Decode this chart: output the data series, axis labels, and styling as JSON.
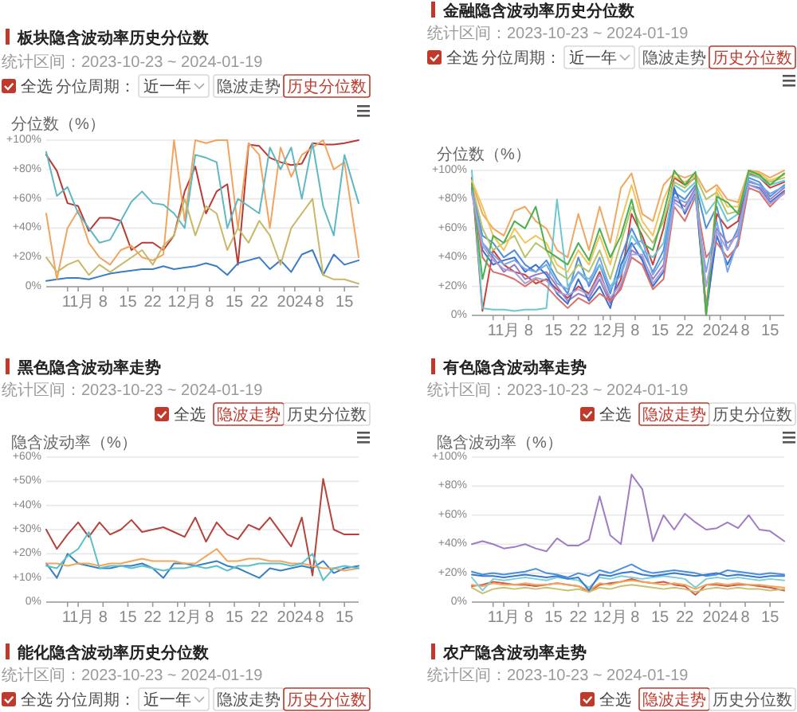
{
  "chart_data": [
    {
      "type": "line",
      "title": "板块隐含波动率历史分位数",
      "subtitle": "统计区间：2023-10-23 ~ 2024-01-19",
      "annotations": [
        "全选",
        "分位周期：",
        "近一年",
        "隐波走势",
        "历史分位数"
      ],
      "ylabel": "分位数（%）",
      "x": [
        "2023-10-23",
        "2023-10-26",
        "2023-10-29",
        "2023-11-01",
        "2023-11-04",
        "2023-11-07",
        "2023-11-10",
        "2023-11-13",
        "2023-11-16",
        "2023-11-19",
        "2023-11-22",
        "2023-11-25",
        "2023-11-28",
        "2023-12-01",
        "2023-12-04",
        "2023-12-07",
        "2023-12-10",
        "2023-12-13",
        "2023-12-16",
        "2023-12-19",
        "2023-12-22",
        "2023-12-25",
        "2023-12-28",
        "2023-12-31",
        "2024-01-03",
        "2024-01-06",
        "2024-01-09",
        "2024-01-12",
        "2024-01-15",
        "2024-01-19"
      ],
      "xlim": [
        "2023-10-23",
        "2024-01-19"
      ],
      "xticks": [
        {
          "value": "2023-10-29",
          "label": null
        },
        {
          "value": "2023-11-01",
          "label": "11月"
        },
        {
          "value": "2023-11-08",
          "label": "8"
        },
        {
          "value": "2023-11-15",
          "label": "15"
        },
        {
          "value": "2023-11-22",
          "label": "22"
        },
        {
          "value": "2023-11-29",
          "label": null
        },
        {
          "value": "2023-12-01",
          "label": "12月"
        },
        {
          "value": "2023-12-08",
          "label": "8"
        },
        {
          "value": "2023-12-15",
          "label": "15"
        },
        {
          "value": "2023-12-22",
          "label": "22"
        },
        {
          "value": "2023-12-29",
          "label": null
        },
        {
          "value": "2024-01-01",
          "label": "2024"
        },
        {
          "value": "2024-01-08",
          "label": "8"
        },
        {
          "value": "2024-01-15",
          "label": "15"
        }
      ],
      "ylim": [
        0,
        100
      ],
      "yticks": [
        {
          "value": 0,
          "label": "0%"
        },
        {
          "value": 20,
          "label": "+20%"
        },
        {
          "value": 40,
          "label": "+40%"
        },
        {
          "value": 60,
          "label": "+60%"
        },
        {
          "value": 80,
          "label": "+80%"
        },
        {
          "value": 100,
          "label": "+100%"
        }
      ],
      "grid": "y",
      "series": [
        {
          "color": "#b83a34",
          "values": [
            90,
            79,
            57,
            55,
            38,
            47,
            47,
            45,
            25,
            30,
            30,
            25,
            35,
            65,
            82,
            50,
            65,
            70,
            15,
            97,
            96,
            88,
            85,
            83,
            84,
            98,
            97,
            97,
            98,
            100
          ]
        },
        {
          "color": "#3a7cc6",
          "values": [
            4,
            5,
            6,
            6,
            5,
            7,
            9,
            10,
            11,
            12,
            12,
            14,
            12,
            13,
            14,
            16,
            14,
            8,
            16,
            18,
            20,
            12,
            18,
            10,
            22,
            25,
            8,
            22,
            15,
            18
          ]
        },
        {
          "color": "#f2a35e",
          "values": [
            50,
            5,
            40,
            52,
            30,
            20,
            15,
            25,
            28,
            20,
            18,
            22,
            100,
            45,
            100,
            98,
            100,
            100,
            40,
            98,
            90,
            40,
            95,
            75,
            90,
            95,
            100,
            80,
            85,
            20
          ]
        },
        {
          "color": "#5fb8c2",
          "values": [
            92,
            62,
            68,
            50,
            40,
            30,
            32,
            45,
            58,
            65,
            57,
            56,
            50,
            40,
            90,
            88,
            85,
            40,
            60,
            55,
            50,
            95,
            80,
            95,
            60,
            98,
            55,
            35,
            90,
            57
          ]
        },
        {
          "color": "#c9b86a",
          "values": [
            20,
            10,
            15,
            18,
            8,
            15,
            10,
            15,
            20,
            25,
            15,
            28,
            35,
            60,
            35,
            55,
            50,
            25,
            40,
            30,
            45,
            35,
            15,
            40,
            50,
            60,
            8,
            5,
            5,
            2
          ]
        }
      ]
    },
    {
      "type": "line",
      "title": "金融隐含波动率历史分位数",
      "subtitle": "统计区间：2023-10-23 ~ 2024-01-19",
      "annotations": [
        "全选",
        "分位周期：",
        "近一年",
        "隐波走势",
        "历史分位数"
      ],
      "ylabel": "分位数（%）",
      "x": [
        "2023-10-23",
        "2023-10-26",
        "2023-10-29",
        "2023-11-01",
        "2023-11-04",
        "2023-11-07",
        "2023-11-10",
        "2023-11-13",
        "2023-11-16",
        "2023-11-19",
        "2023-11-22",
        "2023-11-25",
        "2023-11-28",
        "2023-12-01",
        "2023-12-04",
        "2023-12-07",
        "2023-12-10",
        "2023-12-13",
        "2023-12-16",
        "2023-12-19",
        "2023-12-22",
        "2023-12-25",
        "2023-12-28",
        "2023-12-31",
        "2024-01-03",
        "2024-01-06",
        "2024-01-09",
        "2024-01-12",
        "2024-01-15",
        "2024-01-19"
      ],
      "xlim": [
        "2023-10-23",
        "2024-01-19"
      ],
      "xticks": [
        {
          "value": "2023-10-29",
          "label": null
        },
        {
          "value": "2023-11-01",
          "label": "11月"
        },
        {
          "value": "2023-11-08",
          "label": "8"
        },
        {
          "value": "2023-11-15",
          "label": "15"
        },
        {
          "value": "2023-11-22",
          "label": "22"
        },
        {
          "value": "2023-11-29",
          "label": null
        },
        {
          "value": "2023-12-01",
          "label": "12月"
        },
        {
          "value": "2023-12-08",
          "label": "8"
        },
        {
          "value": "2023-12-15",
          "label": "15"
        },
        {
          "value": "2023-12-22",
          "label": "22"
        },
        {
          "value": "2023-12-29",
          "label": null
        },
        {
          "value": "2024-01-01",
          "label": "2024"
        },
        {
          "value": "2024-01-08",
          "label": "8"
        },
        {
          "value": "2024-01-15",
          "label": "15"
        }
      ],
      "ylim": [
        0,
        100
      ],
      "yticks": [
        {
          "value": 0,
          "label": "0%"
        },
        {
          "value": 20,
          "label": "+20%"
        },
        {
          "value": 40,
          "label": "+40%"
        },
        {
          "value": 60,
          "label": "+60%"
        },
        {
          "value": 80,
          "label": "+80%"
        },
        {
          "value": 100,
          "label": "+100%"
        }
      ],
      "grid": "y",
      "series": [
        {
          "color": "#c8423c",
          "values": [
            95,
            3,
            45,
            35,
            30,
            28,
            22,
            25,
            18,
            12,
            20,
            15,
            30,
            10,
            25,
            70,
            55,
            35,
            60,
            95,
            90,
            95,
            5,
            70,
            60,
            65,
            98,
            95,
            88,
            92
          ]
        },
        {
          "color": "#4f8fdc",
          "values": [
            88,
            55,
            50,
            40,
            45,
            35,
            30,
            38,
            25,
            15,
            40,
            20,
            35,
            15,
            40,
            60,
            45,
            30,
            45,
            85,
            80,
            90,
            60,
            75,
            45,
            60,
            95,
            92,
            82,
            90
          ]
        },
        {
          "color": "#f0a860",
          "values": [
            92,
            70,
            60,
            55,
            72,
            75,
            65,
            60,
            45,
            40,
            70,
            45,
            75,
            50,
            88,
            98,
            70,
            65,
            90,
            98,
            95,
            98,
            85,
            90,
            80,
            78,
            100,
            99,
            95,
            100
          ]
        },
        {
          "color": "#6cc7d4",
          "values": [
            100,
            5,
            4,
            4,
            3,
            4,
            4,
            5,
            80,
            20,
            30,
            25,
            35,
            20,
            30,
            55,
            45,
            40,
            50,
            90,
            85,
            92,
            70,
            80,
            65,
            70,
            97,
            95,
            90,
            93
          ]
        },
        {
          "color": "#b5c46a",
          "values": [
            90,
            60,
            45,
            50,
            55,
            40,
            50,
            45,
            30,
            25,
            35,
            30,
            45,
            25,
            50,
            75,
            60,
            50,
            65,
            92,
            88,
            96,
            80,
            85,
            70,
            72,
            99,
            96,
            92,
            95
          ]
        },
        {
          "color": "#9b7cc4",
          "values": [
            85,
            50,
            40,
            30,
            35,
            25,
            28,
            30,
            20,
            10,
            15,
            12,
            25,
            8,
            20,
            45,
            40,
            25,
            35,
            80,
            75,
            88,
            0,
            60,
            50,
            55,
            92,
            90,
            80,
            88
          ]
        },
        {
          "color": "#3f6fcf",
          "values": [
            87,
            45,
            35,
            38,
            40,
            30,
            35,
            28,
            15,
            8,
            25,
            10,
            20,
            5,
            35,
            50,
            38,
            20,
            30,
            88,
            70,
            85,
            2,
            55,
            35,
            50,
            90,
            88,
            78,
            86
          ]
        },
        {
          "color": "#f2c45c",
          "values": [
            93,
            75,
            55,
            45,
            60,
            50,
            55,
            50,
            35,
            30,
            45,
            35,
            55,
            35,
            65,
            90,
            65,
            55,
            80,
            96,
            92,
            97,
            0,
            88,
            75,
            75,
            100,
            98,
            93,
            97
          ]
        },
        {
          "color": "#d9706a",
          "values": [
            89,
            40,
            30,
            28,
            25,
            20,
            25,
            20,
            12,
            5,
            12,
            8,
            15,
            10,
            18,
            40,
            35,
            18,
            25,
            75,
            65,
            82,
            40,
            50,
            40,
            48,
            88,
            85,
            75,
            85
          ]
        },
        {
          "color": "#4caf50",
          "values": [
            91,
            25,
            55,
            50,
            65,
            60,
            75,
            45,
            40,
            35,
            50,
            38,
            60,
            40,
            55,
            80,
            50,
            45,
            70,
            100,
            90,
            99,
            0,
            82,
            78,
            70,
            100,
            97,
            90,
            98
          ]
        },
        {
          "color": "#7aa6e6",
          "values": [
            86,
            50,
            42,
            35,
            38,
            32,
            30,
            35,
            22,
            18,
            30,
            22,
            40,
            18,
            28,
            48,
            52,
            28,
            40,
            82,
            78,
            80,
            30,
            65,
            30,
            52,
            93,
            90,
            84,
            89
          ]
        },
        {
          "color": "#a6a3dc",
          "values": [
            84,
            48,
            38,
            32,
            30,
            22,
            26,
            24,
            16,
            14,
            18,
            14,
            28,
            12,
            22,
            42,
            42,
            22,
            32,
            78,
            72,
            86,
            20,
            58,
            45,
            58,
            90,
            87,
            77,
            84
          ]
        }
      ]
    },
    {
      "type": "line",
      "title": "黑色隐含波动率走势",
      "subtitle": "统计区间：2023-10-23 ~ 2024-01-19",
      "annotations": [
        "全选",
        "隐波走势",
        "历史分位数"
      ],
      "ylabel": "隐含波动率（%）",
      "x": [
        "2023-10-23",
        "2023-10-26",
        "2023-10-29",
        "2023-11-01",
        "2023-11-04",
        "2023-11-07",
        "2023-11-10",
        "2023-11-13",
        "2023-11-16",
        "2023-11-19",
        "2023-11-22",
        "2023-11-25",
        "2023-11-28",
        "2023-12-01",
        "2023-12-04",
        "2023-12-07",
        "2023-12-10",
        "2023-12-13",
        "2023-12-16",
        "2023-12-19",
        "2023-12-22",
        "2023-12-25",
        "2023-12-28",
        "2023-12-31",
        "2024-01-03",
        "2024-01-06",
        "2024-01-09",
        "2024-01-12",
        "2024-01-15",
        "2024-01-19"
      ],
      "xlim": [
        "2023-10-23",
        "2024-01-19"
      ],
      "xticks": [
        {
          "value": "2023-10-29",
          "label": null
        },
        {
          "value": "2023-11-01",
          "label": "11月"
        },
        {
          "value": "2023-11-08",
          "label": "8"
        },
        {
          "value": "2023-11-15",
          "label": "15"
        },
        {
          "value": "2023-11-22",
          "label": "22"
        },
        {
          "value": "2023-11-29",
          "label": null
        },
        {
          "value": "2023-12-01",
          "label": "12月"
        },
        {
          "value": "2023-12-08",
          "label": "8"
        },
        {
          "value": "2023-12-15",
          "label": "15"
        },
        {
          "value": "2023-12-22",
          "label": "22"
        },
        {
          "value": "2023-12-29",
          "label": null
        },
        {
          "value": "2024-01-01",
          "label": "2024"
        },
        {
          "value": "2024-01-08",
          "label": "8"
        },
        {
          "value": "2024-01-15",
          "label": "15"
        }
      ],
      "ylim": [
        0,
        60
      ],
      "yticks": [
        {
          "value": 0,
          "label": "0%"
        },
        {
          "value": 10,
          "label": "+10%"
        },
        {
          "value": 20,
          "label": "+20%"
        },
        {
          "value": 30,
          "label": "+30%"
        },
        {
          "value": 40,
          "label": "+40%"
        },
        {
          "value": 50,
          "label": "+50%"
        },
        {
          "value": 60,
          "label": "+60%"
        }
      ],
      "grid": "y",
      "series": [
        {
          "color": "#b5423c",
          "values": [
            30,
            22,
            28,
            33,
            27,
            33,
            28,
            30,
            34,
            29,
            30,
            31,
            29,
            27,
            35,
            25,
            33,
            28,
            26,
            32,
            30,
            35,
            29,
            23,
            35,
            11,
            51,
            30,
            28,
            28
          ]
        },
        {
          "color": "#3580c4",
          "values": [
            16,
            10,
            20,
            16,
            15,
            14,
            14,
            15,
            15,
            16,
            14,
            10,
            16,
            16,
            15,
            16,
            17,
            15,
            14,
            12,
            10,
            14,
            13,
            14,
            15,
            14,
            17,
            12,
            14,
            15
          ]
        },
        {
          "color": "#f2a65a",
          "values": [
            16,
            16,
            15,
            16,
            16,
            15,
            16,
            16,
            17,
            18,
            17,
            17,
            17,
            16,
            16,
            19,
            22,
            17,
            17,
            18,
            18,
            17,
            17,
            16,
            16,
            15,
            14,
            14,
            13,
            14
          ]
        },
        {
          "color": "#5cc0cc",
          "values": [
            15,
            14,
            19,
            22,
            29,
            14,
            15,
            15,
            14,
            15,
            14,
            13,
            14,
            14,
            15,
            14,
            15,
            13,
            15,
            15,
            16,
            16,
            16,
            15,
            16,
            20,
            9,
            14,
            15,
            14
          ]
        }
      ]
    },
    {
      "type": "line",
      "title": "有色隐含波动率走势",
      "subtitle": "统计区间：2023-10-23 ~ 2024-01-19",
      "annotations": [
        "全选",
        "隐波走势",
        "历史分位数"
      ],
      "ylabel": "隐含波动率（%）",
      "x": [
        "2023-10-23",
        "2023-10-26",
        "2023-10-29",
        "2023-11-01",
        "2023-11-04",
        "2023-11-07",
        "2023-11-10",
        "2023-11-13",
        "2023-11-16",
        "2023-11-19",
        "2023-11-22",
        "2023-11-25",
        "2023-11-28",
        "2023-12-01",
        "2023-12-04",
        "2023-12-07",
        "2023-12-10",
        "2023-12-13",
        "2023-12-16",
        "2023-12-19",
        "2023-12-22",
        "2023-12-25",
        "2023-12-28",
        "2023-12-31",
        "2024-01-03",
        "2024-01-06",
        "2024-01-09",
        "2024-01-12",
        "2024-01-15",
        "2024-01-19"
      ],
      "xlim": [
        "2023-10-23",
        "2024-01-19"
      ],
      "xticks": [
        {
          "value": "2023-10-29",
          "label": null
        },
        {
          "value": "2023-11-01",
          "label": "11月"
        },
        {
          "value": "2023-11-08",
          "label": "8"
        },
        {
          "value": "2023-11-15",
          "label": "15"
        },
        {
          "value": "2023-11-22",
          "label": "22"
        },
        {
          "value": "2023-11-29",
          "label": null
        },
        {
          "value": "2023-12-01",
          "label": "12月"
        },
        {
          "value": "2023-12-08",
          "label": "8"
        },
        {
          "value": "2023-12-15",
          "label": "15"
        },
        {
          "value": "2023-12-22",
          "label": "22"
        },
        {
          "value": "2023-12-29",
          "label": null
        },
        {
          "value": "2024-01-01",
          "label": "2024"
        },
        {
          "value": "2024-01-08",
          "label": "8"
        },
        {
          "value": "2024-01-15",
          "label": "15"
        }
      ],
      "ylim": [
        0,
        100
      ],
      "yticks": [
        {
          "value": 0,
          "label": "0%"
        },
        {
          "value": 20,
          "label": "+20%"
        },
        {
          "value": 40,
          "label": "+40%"
        },
        {
          "value": 60,
          "label": "+60%"
        },
        {
          "value": 80,
          "label": "+80%"
        },
        {
          "value": 100,
          "label": "+100%"
        }
      ],
      "grid": "y",
      "series": [
        {
          "color": "#d0574a",
          "values": [
            11,
            12,
            14,
            13,
            12,
            12,
            11,
            12,
            13,
            12,
            11,
            7,
            12,
            13,
            14,
            16,
            14,
            13,
            14,
            12,
            11,
            5,
            12,
            12,
            11,
            12,
            12,
            11,
            10,
            8
          ]
        },
        {
          "color": "#4a90d9",
          "values": [
            21,
            19,
            20,
            19,
            20,
            21,
            23,
            20,
            19,
            17,
            20,
            18,
            22,
            20,
            23,
            26,
            22,
            20,
            21,
            22,
            21,
            20,
            18,
            19,
            22,
            21,
            20,
            19,
            20,
            19
          ]
        },
        {
          "color": "#f2a65a",
          "values": [
            12,
            11,
            13,
            12,
            12,
            13,
            12,
            12,
            13,
            12,
            11,
            8,
            13,
            12,
            14,
            15,
            14,
            13,
            12,
            13,
            12,
            9,
            12,
            13,
            12,
            13,
            12,
            12,
            11,
            10
          ]
        },
        {
          "color": "#7ccfd6",
          "values": [
            17,
            8,
            16,
            15,
            16,
            17,
            16,
            15,
            17,
            16,
            15,
            10,
            17,
            16,
            18,
            17,
            16,
            17,
            18,
            17,
            16,
            10,
            16,
            17,
            16,
            17,
            16,
            15,
            16,
            15
          ]
        },
        {
          "color": "#c8c070",
          "values": [
            10,
            6,
            9,
            10,
            9,
            10,
            9,
            10,
            9,
            8,
            9,
            7,
            10,
            9,
            11,
            12,
            11,
            10,
            9,
            10,
            9,
            7,
            9,
            10,
            9,
            10,
            9,
            9,
            8,
            9
          ]
        },
        {
          "color": "#a07cc5",
          "values": [
            40,
            42,
            40,
            37,
            38,
            40,
            37,
            35,
            44,
            39,
            39,
            43,
            73,
            46,
            40,
            88,
            78,
            42,
            60,
            50,
            61,
            55,
            50,
            51,
            55,
            51,
            60,
            50,
            49,
            42
          ]
        },
        {
          "color": "#3b78d0",
          "values": [
            19,
            18,
            18,
            17,
            18,
            19,
            18,
            17,
            18,
            16,
            17,
            8,
            19,
            18,
            20,
            21,
            19,
            18,
            19,
            20,
            19,
            18,
            19,
            20,
            18,
            19,
            18,
            17,
            18,
            18
          ]
        }
      ]
    },
    {
      "type": "other",
      "title": "能化隐含波动率历史分位数",
      "subtitle": "统计区间：2023-10-23 ~ 2024-01-19",
      "annotations": [
        "全选",
        "分位周期：",
        "近一年",
        "隐波走势",
        "历史分位数"
      ]
    },
    {
      "type": "other",
      "title": "农产隐含波动率走势",
      "subtitle": "统计区间：2023-10-23 ~ 2024-01-19",
      "annotations": [
        "全选",
        "隐波走势",
        "历史分位数"
      ]
    }
  ]
}
